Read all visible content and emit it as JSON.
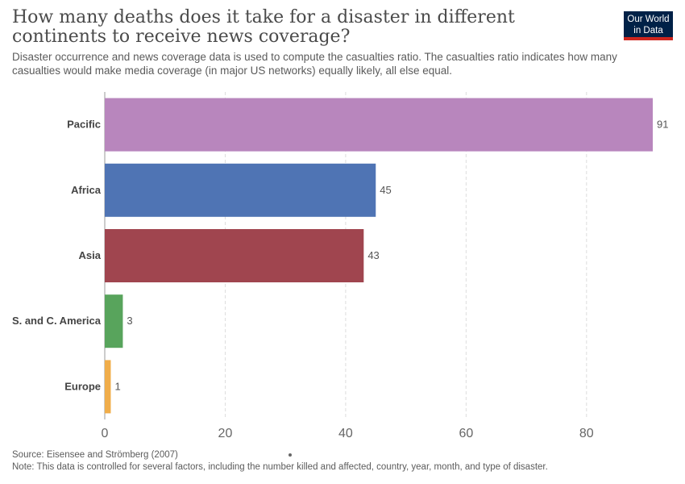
{
  "title": "How many deaths does it take for a disaster in different continents to receive news coverage?",
  "subtitle": "Disaster occurrence and news coverage data is used to compute the casualties ratio. The casualties ratio indicates how many casualties would make media coverage (in major US networks) equally likely, all else equal.",
  "logo": {
    "line1": "Our World",
    "line2": "in Data"
  },
  "source": "Source: Eisensee and Strömberg (2007)",
  "note": "Note: This data is controlled for several factors, including the number killed and affected, country, year, month, and type of disaster.",
  "chart_data": {
    "type": "bar",
    "orientation": "horizontal",
    "categories": [
      "Pacific",
      "Africa",
      "Asia",
      "S. and C. America",
      "Europe"
    ],
    "values": [
      91,
      45,
      43,
      3,
      1
    ],
    "colors": [
      "#b886bd",
      "#4f74b4",
      "#a0454f",
      "#58a45c",
      "#f0ad4a"
    ],
    "xticks": [
      0,
      20,
      40,
      60,
      80
    ],
    "xlim": [
      0,
      91
    ],
    "grid": true,
    "data_labels": true
  }
}
